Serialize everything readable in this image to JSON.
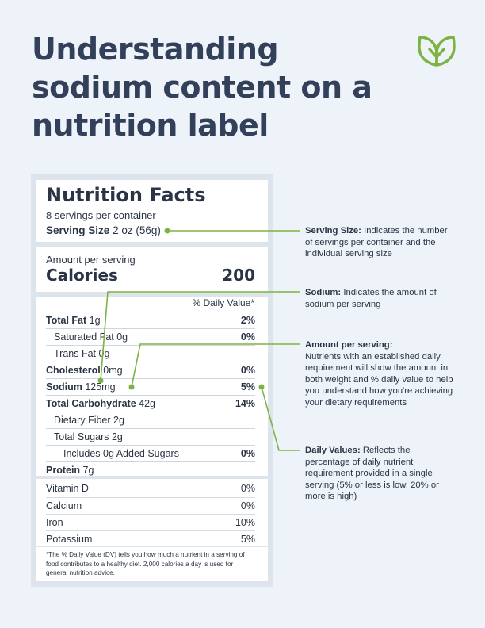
{
  "page": {
    "title": "Understanding sodium content on a nutrition label",
    "accent_color": "#7cb342",
    "logo_icon": "leaf-icon"
  },
  "label": {
    "title": "Nutrition Facts",
    "servings": "8 servings per container",
    "serving_size_label": "Serving Size",
    "serving_size_value": "2 oz (56g)",
    "amount_per_serving": "Amount per serving",
    "calories_label": "Calories",
    "calories_value": "200",
    "dv_header": "% Daily Value*",
    "nutrients": [
      {
        "name": "Total Fat",
        "amount": "1g",
        "pct": "2%",
        "bold": true
      },
      {
        "name": "Saturated Fat",
        "amount": "0g",
        "pct": "0%",
        "bold": false
      },
      {
        "name": "Trans Fat",
        "amount": "0g",
        "pct": "",
        "bold": false
      },
      {
        "name": "Cholesterol",
        "amount": "0mg",
        "pct": "0%",
        "bold": true
      },
      {
        "name": "Sodium",
        "amount": "125mg",
        "pct": "5%",
        "bold": true
      },
      {
        "name": "Total Carbohydrate",
        "amount": "42g",
        "pct": "14%",
        "bold": true
      },
      {
        "name": "Dietary Fiber",
        "amount": "2g",
        "pct": "",
        "bold": false
      },
      {
        "name": "Total Sugars",
        "amount": "2g",
        "pct": "",
        "bold": false
      },
      {
        "name": "Includes 0g Added Sugars",
        "amount": "",
        "pct": "0%",
        "bold": false
      },
      {
        "name": "Protein",
        "amount": "7g",
        "pct": "",
        "bold": true
      }
    ],
    "vitamins": [
      {
        "name": "Vitamin D",
        "pct": "0%"
      },
      {
        "name": "Calcium",
        "pct": "0%"
      },
      {
        "name": "Iron",
        "pct": "10%"
      },
      {
        "name": "Potassium",
        "pct": "5%"
      }
    ],
    "footnote": "*The % Daily Value (DV) tells you how much a nutrient in a serving of food contributes to a healthy diet. 2,000 calories a day is used for general nutrition advice."
  },
  "callouts": [
    {
      "title": "Serving Size:",
      "text": "Indicates the number of servings per container and the individual serving size"
    },
    {
      "title": "Sodium:",
      "text": "Indicates the amount of sodium per serving"
    },
    {
      "title": "Amount per serving:",
      "text": "Nutrients with an established daily requirement will show the amount in both weight and % daily value to help you understand how you're achieving your dietary requirements"
    },
    {
      "title": "Daily Values:",
      "text": "Reflects the percentage of daily nutrient requirement provided in a single serving (5% or less is low, 20% or more is high)"
    }
  ]
}
